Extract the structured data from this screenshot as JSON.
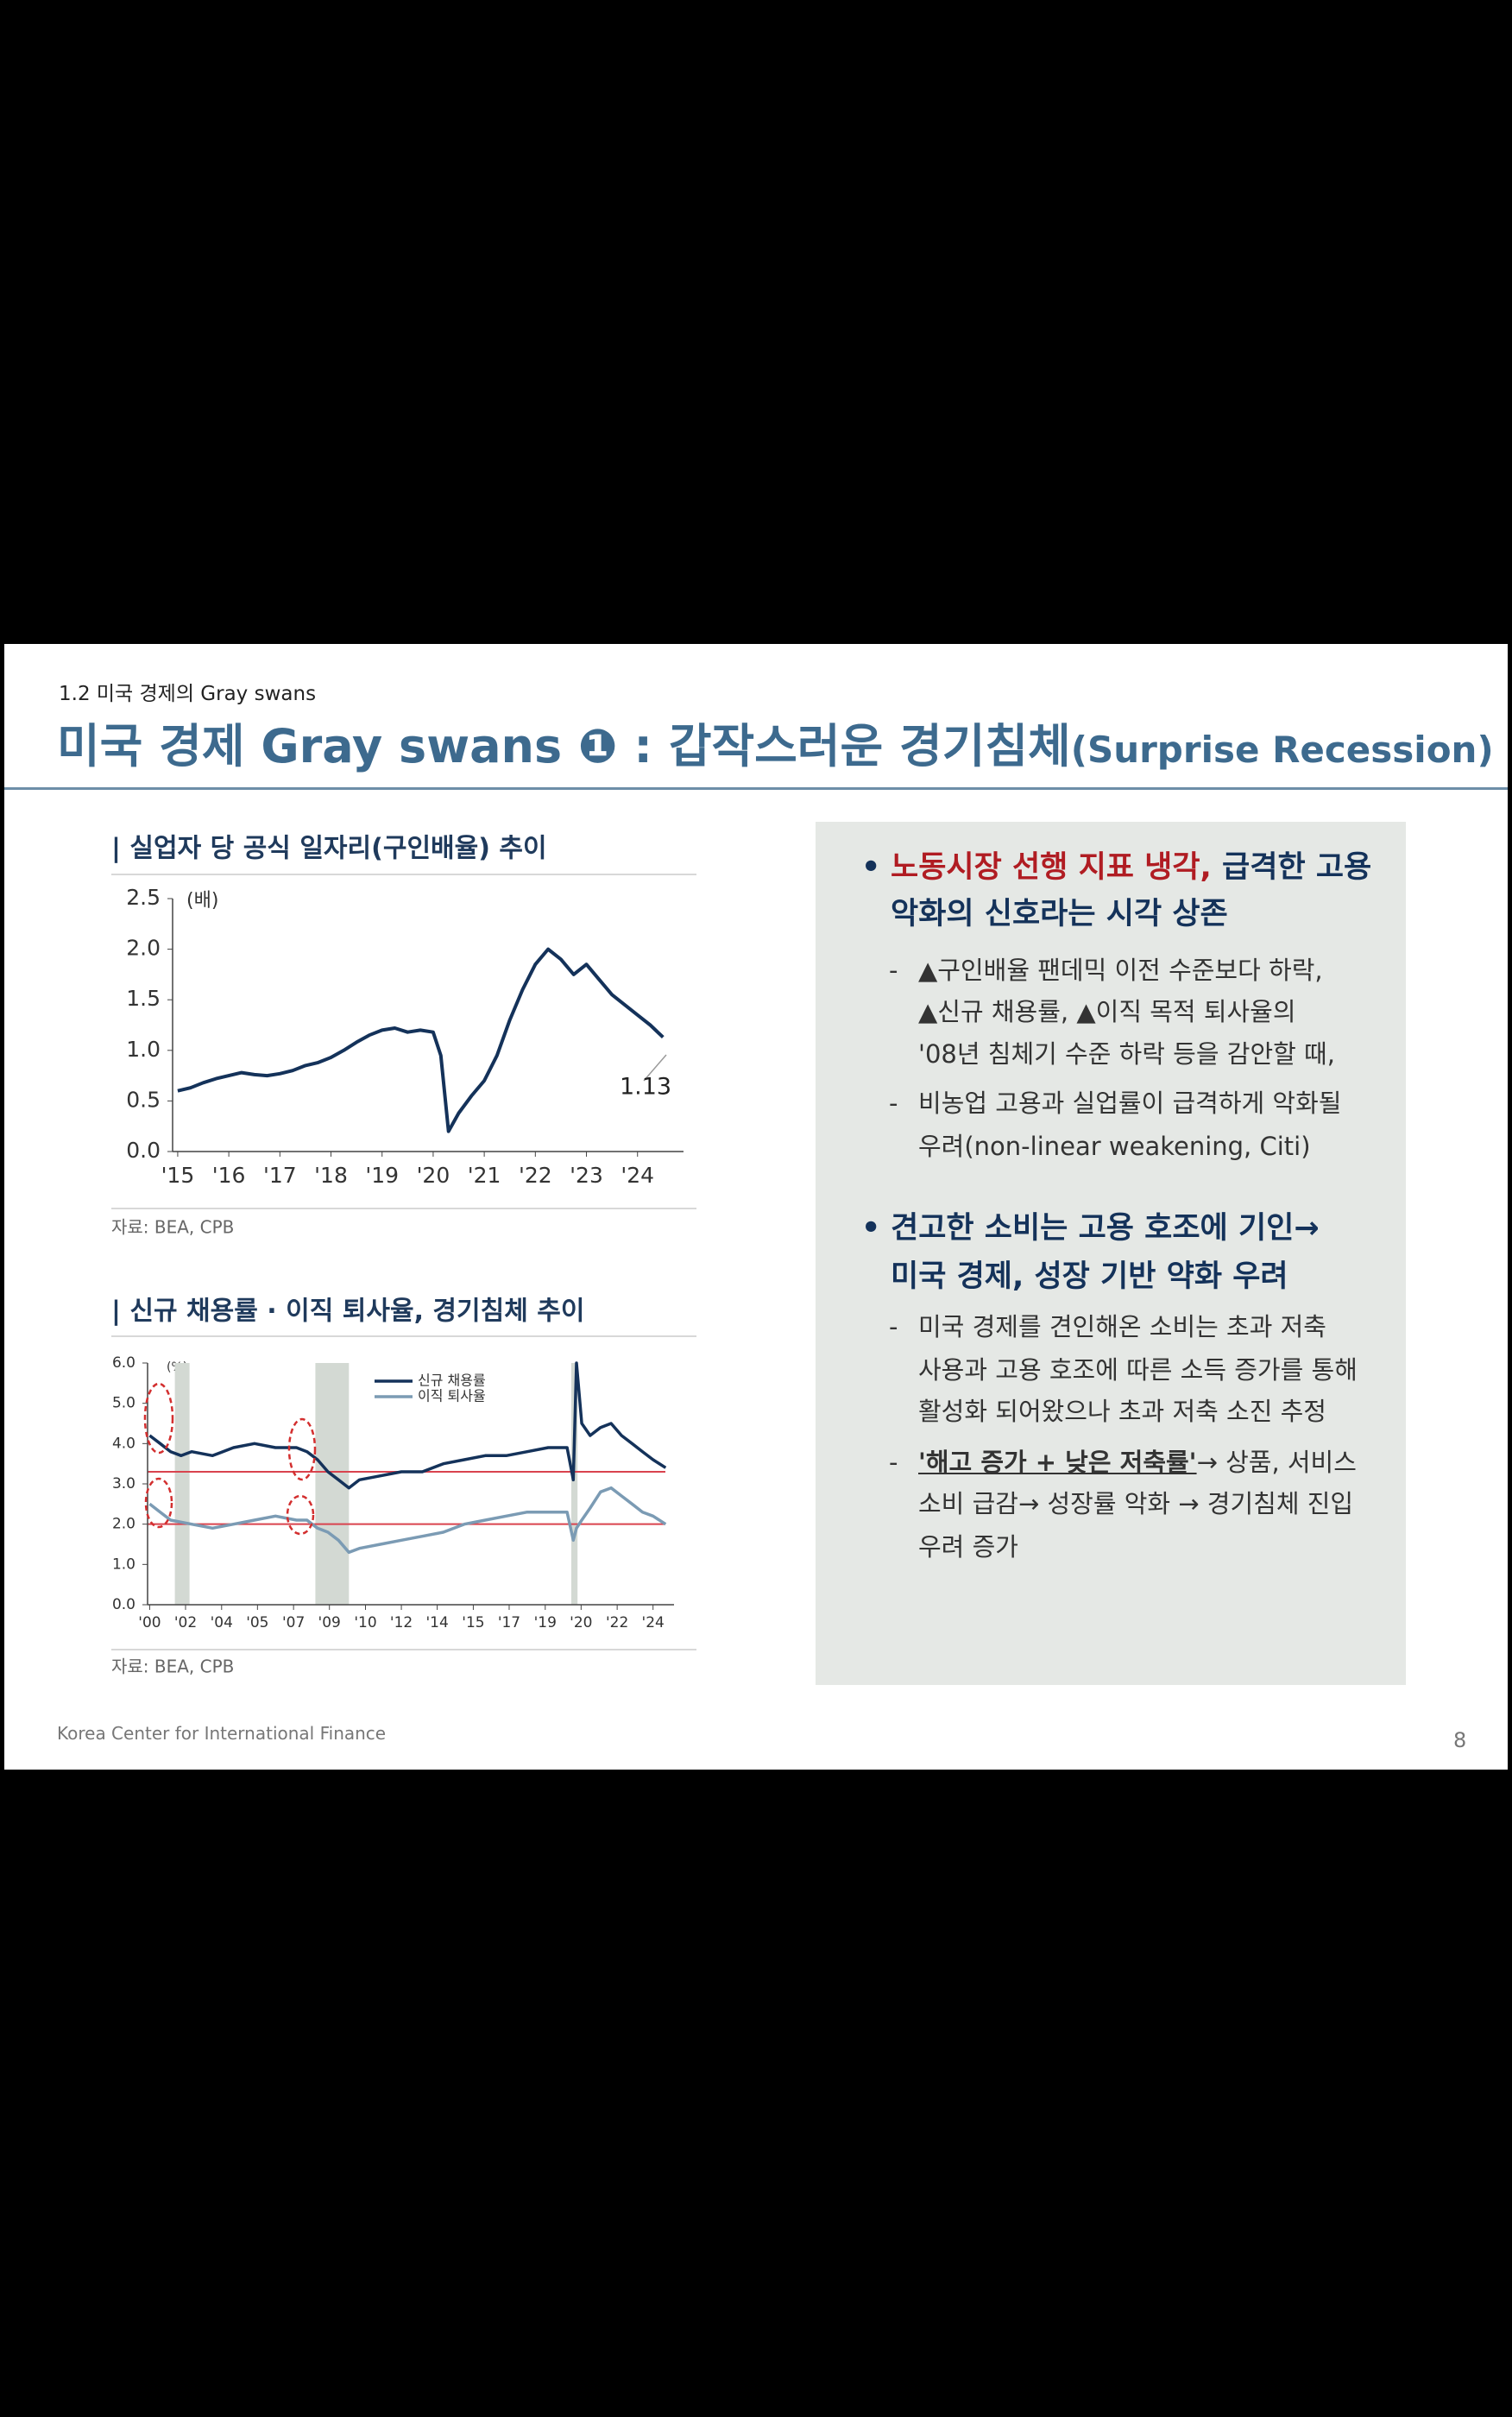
{
  "header": {
    "section": "1.2 미국 경제의 Gray swans",
    "title": "미국 경제 Gray swans ❶ : 갑작스러운 경기침체",
    "title_suffix": "(Surprise Recession)"
  },
  "chart_data": [
    {
      "type": "line",
      "title": "| 실업자 당 공식 일자리(구인배율) 추이",
      "unit": "(배)",
      "source": "자료: BEA, CPB",
      "x": [
        2015,
        2015.25,
        2015.5,
        2015.75,
        2016,
        2016.25,
        2016.5,
        2016.75,
        2017,
        2017.25,
        2017.5,
        2017.75,
        2018,
        2018.25,
        2018.5,
        2018.75,
        2019,
        2019.25,
        2019.5,
        2019.75,
        2020,
        2020.15,
        2020.3,
        2020.5,
        2020.75,
        2021,
        2021.25,
        2021.5,
        2021.75,
        2022,
        2022.25,
        2022.5,
        2022.75,
        2023,
        2023.25,
        2023.5,
        2023.75,
        2024,
        2024.25,
        2024.5
      ],
      "series": [
        {
          "color": "#14325a",
          "values": [
            0.6,
            0.63,
            0.68,
            0.72,
            0.75,
            0.78,
            0.76,
            0.75,
            0.77,
            0.8,
            0.85,
            0.88,
            0.93,
            1.0,
            1.08,
            1.15,
            1.2,
            1.22,
            1.18,
            1.2,
            1.18,
            0.95,
            0.2,
            0.38,
            0.55,
            0.7,
            0.95,
            1.3,
            1.6,
            1.85,
            2.0,
            1.9,
            1.75,
            1.85,
            1.7,
            1.55,
            1.45,
            1.35,
            1.25,
            1.13
          ]
        }
      ],
      "annotation": "1.13",
      "xlim": [
        2014.9,
        2024.9
      ],
      "xticks": [
        {
          "value": 2015,
          "label": "'15"
        },
        {
          "value": 2016,
          "label": "'16"
        },
        {
          "value": 2017,
          "label": "'17"
        },
        {
          "value": 2018,
          "label": "'18"
        },
        {
          "value": 2019,
          "label": "'19"
        },
        {
          "value": 2020,
          "label": "'20"
        },
        {
          "value": 2021,
          "label": "'21"
        },
        {
          "value": 2022,
          "label": "'22"
        },
        {
          "value": 2023,
          "label": "'23"
        },
        {
          "value": 2024,
          "label": "'24"
        }
      ],
      "ylim": [
        0,
        2.5
      ],
      "yticks": [
        {
          "value": 0,
          "label": "0.0"
        },
        0.5,
        {
          "value": 1,
          "label": "1.0"
        },
        1.5,
        {
          "value": 2,
          "label": "2.0"
        },
        2.5
      ]
    },
    {
      "type": "line",
      "title": "| 신규 채용률 · 이직 퇴사율, 경기침체 추이",
      "unit": "(%)",
      "source": "자료: BEA, CPB",
      "x": [
        2000,
        2000.5,
        2001,
        2001.5,
        2002,
        2003,
        2004,
        2005,
        2006,
        2007,
        2007.5,
        2008,
        2008.5,
        2009,
        2009.5,
        2010,
        2011,
        2012,
        2013,
        2014,
        2015,
        2016,
        2017,
        2018,
        2019,
        2019.9,
        2020.2,
        2020.35,
        2020.6,
        2021,
        2021.5,
        2022,
        2022.5,
        2023,
        2023.5,
        2024,
        2024.6
      ],
      "series": [
        {
          "name": "신규 채용률",
          "color": "#14325a",
          "values": [
            4.2,
            4.0,
            3.8,
            3.7,
            3.8,
            3.7,
            3.9,
            4.0,
            3.9,
            3.9,
            3.8,
            3.6,
            3.3,
            3.1,
            2.9,
            3.1,
            3.2,
            3.3,
            3.3,
            3.5,
            3.6,
            3.7,
            3.7,
            3.8,
            3.9,
            3.9,
            3.1,
            6.0,
            4.5,
            4.2,
            4.4,
            4.5,
            4.2,
            4.0,
            3.8,
            3.6,
            3.4
          ]
        },
        {
          "name": "이직 퇴사율",
          "color": "#7b9bb4",
          "values": [
            2.5,
            2.3,
            2.1,
            2.05,
            2.0,
            1.9,
            2.0,
            2.1,
            2.2,
            2.1,
            2.1,
            1.9,
            1.8,
            1.6,
            1.3,
            1.4,
            1.5,
            1.6,
            1.7,
            1.8,
            2.0,
            2.1,
            2.2,
            2.3,
            2.3,
            2.3,
            1.6,
            1.9,
            2.1,
            2.4,
            2.8,
            2.9,
            2.7,
            2.5,
            2.3,
            2.2,
            2.0
          ]
        }
      ],
      "recessions": [
        [
          2001.2,
          2001.9
        ],
        [
          2007.9,
          2009.5
        ],
        [
          2020.1,
          2020.4
        ]
      ],
      "recession_color": "#d3d9d3",
      "reference_lines": [
        3.3,
        2.0
      ],
      "reference_color": "#d9434e",
      "xlim": [
        1999.9,
        2025
      ],
      "xticks": [
        {
          "value": 2000,
          "label": "'00"
        },
        {
          "value": 2001.71,
          "label": "'02"
        },
        {
          "value": 2003.43,
          "label": "'04"
        },
        {
          "value": 2005.14,
          "label": "'05"
        },
        {
          "value": 2006.86,
          "label": "'07"
        },
        {
          "value": 2008.57,
          "label": "'09"
        },
        {
          "value": 2010.29,
          "label": "'10"
        },
        {
          "value": 2012,
          "label": "'12"
        },
        {
          "value": 2013.71,
          "label": "'14"
        },
        {
          "value": 2015.43,
          "label": "'15"
        },
        {
          "value": 2017.14,
          "label": "'17"
        },
        {
          "value": 2018.86,
          "label": "'19"
        },
        {
          "value": 2020.57,
          "label": "'20"
        },
        {
          "value": 2022.29,
          "label": "'22"
        },
        {
          "value": 2024,
          "label": "'24"
        }
      ],
      "ylim": [
        0,
        6
      ],
      "yticks": [
        {
          "value": 0,
          "label": "0.0"
        },
        {
          "value": 1,
          "label": "1.0"
        },
        {
          "value": 2,
          "label": "2.0"
        },
        {
          "value": 3,
          "label": "3.0"
        },
        {
          "value": 4,
          "label": "4.0"
        },
        {
          "value": 5,
          "label": "5.0"
        },
        {
          "value": 6,
          "label": "6.0"
        }
      ]
    }
  ],
  "panel": {
    "bullets": [
      {
        "highlight": "노동시장 선행 지표 냉각,",
        "lines": [
          "급격한 고용",
          "악화의 신호라는 시각 상존"
        ],
        "items": [
          [
            "▲구인배율 팬데믹 이전 수준보다 하락,",
            "▲신규 채용률, ▲이직 목적 퇴사율의",
            "'08년 침체기 수준 하락 등을 감안할 때,"
          ],
          [
            "비농업 고용과 실업률이 급격하게 악화될",
            "우려(non-linear weakening, Citi)"
          ]
        ]
      },
      {
        "lines": [
          "견고한 소비는 고용 호조에 기인→",
          "미국 경제, 성장 기반 약화 우려"
        ],
        "items": [
          [
            "미국 경제를 견인해온 소비는 초과 저축",
            "사용과 고용 호조에 따른 소득 증가를 통해",
            "활성화 되어왔으나 초과 저축 소진 추정"
          ]
        ],
        "emph_item": {
          "emph": "'해고 증가 + 낮은 저축률'",
          "lines": [
            "→ 상품, 서비스",
            "소비 급감→ 성장률 악화 → 경기침체 진입",
            "우려 증가"
          ]
        }
      }
    ]
  },
  "footer": {
    "org": "Korea Center for International Finance",
    "page": "8"
  }
}
